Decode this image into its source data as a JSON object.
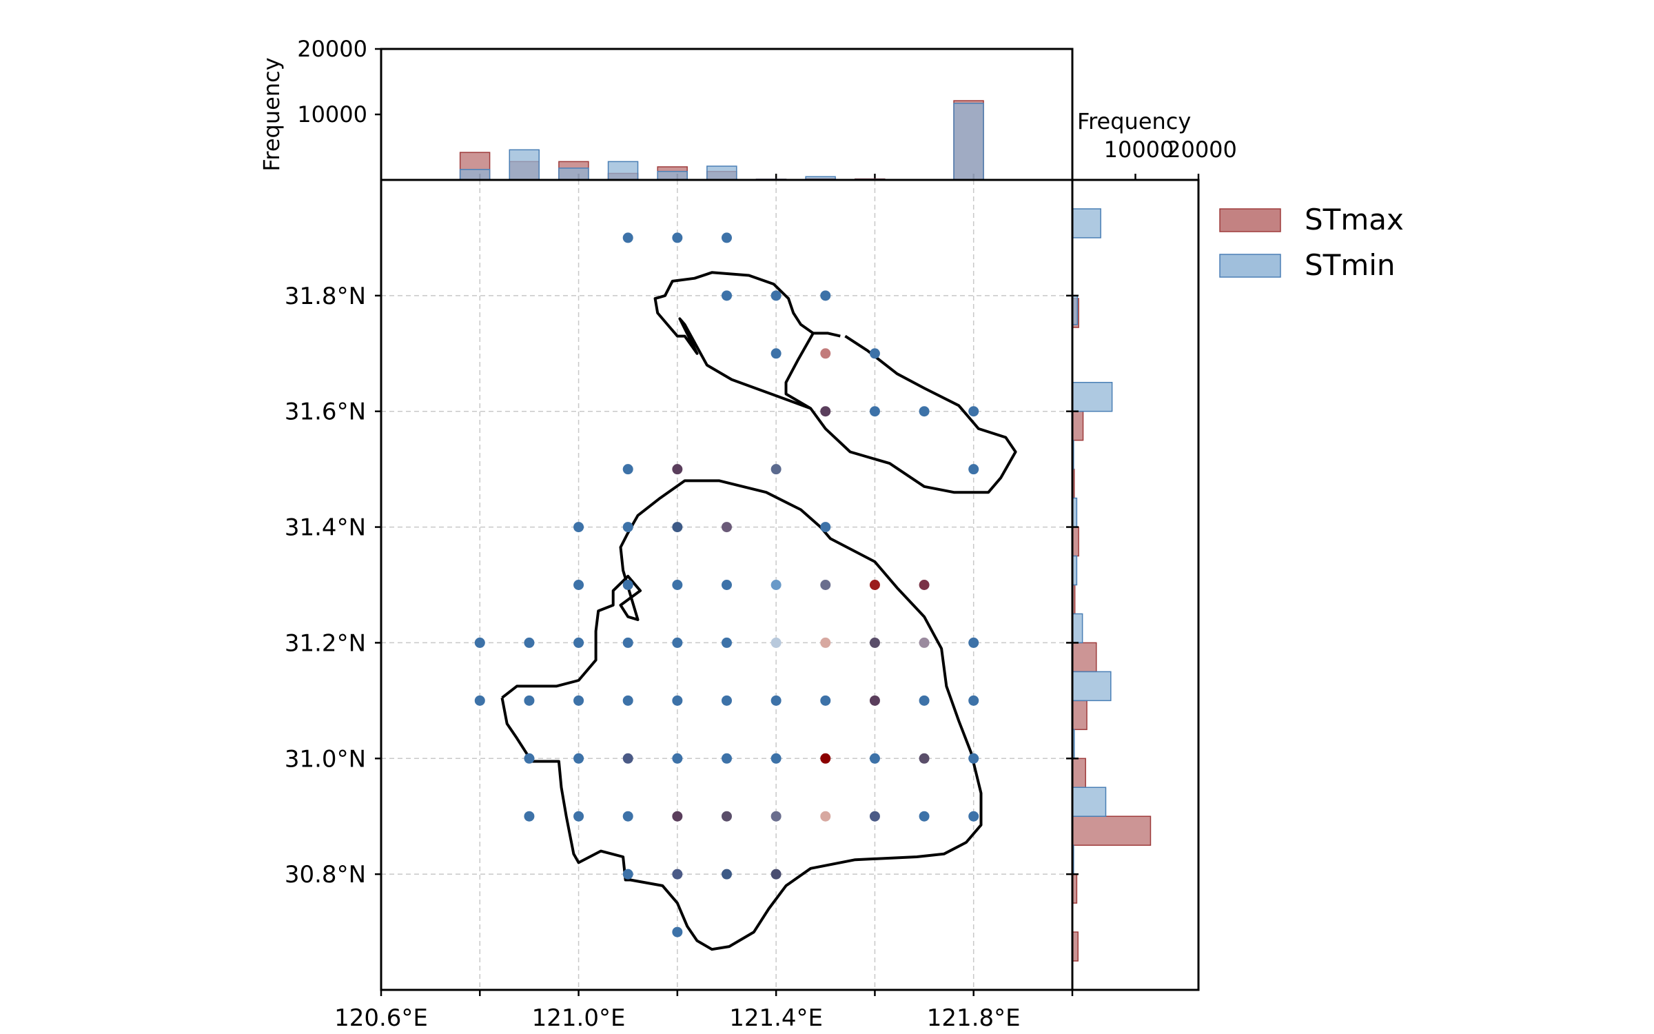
{
  "chart_data": {
    "type": "scatter",
    "xlim": [
      120.6,
      122.0
    ],
    "ylim": [
      30.6,
      32.0
    ],
    "grid": true,
    "x_ticks": [
      120.6,
      120.8,
      121.0,
      121.2,
      121.4,
      121.6,
      121.8,
      122.0
    ],
    "x_tick_labels": [
      "120.6°E",
      "",
      "121.0°E",
      "",
      "121.4°E",
      "",
      "121.8°E",
      ""
    ],
    "y_ticks": [
      30.8,
      31.0,
      31.2,
      31.4,
      31.6,
      31.8
    ],
    "y_tick_labels": [
      "30.8°N",
      "31.0°N",
      "31.2°N",
      "31.4°N",
      "31.6°N",
      "31.8°N"
    ],
    "colors": {
      "stmax": "#9e3b3b",
      "stmin": "#4a7fb5",
      "station_default": "#3d72a8"
    },
    "stations": [
      {
        "lon": 121.1,
        "lat": 31.9,
        "color": "#3d72a8",
        "alpha": 1
      },
      {
        "lon": 121.2,
        "lat": 31.9,
        "color": "#3d72a8",
        "alpha": 1
      },
      {
        "lon": 121.3,
        "lat": 31.9,
        "color": "#3d72a8",
        "alpha": 1
      },
      {
        "lon": 121.3,
        "lat": 31.8,
        "color": "#3d72a8",
        "alpha": 1
      },
      {
        "lon": 121.4,
        "lat": 31.8,
        "color": "#3d72a8",
        "alpha": 1
      },
      {
        "lon": 121.5,
        "lat": 31.8,
        "color": "#3d72a8",
        "alpha": 1
      },
      {
        "lon": 121.4,
        "lat": 31.7,
        "color": "#3d72a8",
        "alpha": 1
      },
      {
        "lon": 121.5,
        "lat": 31.7,
        "color": "#b35a5a",
        "alpha": 0.8
      },
      {
        "lon": 121.6,
        "lat": 31.7,
        "color": "#3d72a8",
        "alpha": 1
      },
      {
        "lon": 121.5,
        "lat": 31.6,
        "color": "#5a3e5c",
        "alpha": 1
      },
      {
        "lon": 121.6,
        "lat": 31.6,
        "color": "#3d72a8",
        "alpha": 1
      },
      {
        "lon": 121.7,
        "lat": 31.6,
        "color": "#3d72a8",
        "alpha": 1
      },
      {
        "lon": 121.8,
        "lat": 31.6,
        "color": "#3d72a8",
        "alpha": 1
      },
      {
        "lon": 121.1,
        "lat": 31.5,
        "color": "#3d72a8",
        "alpha": 1
      },
      {
        "lon": 121.2,
        "lat": 31.5,
        "color": "#5a3e5c",
        "alpha": 1
      },
      {
        "lon": 121.4,
        "lat": 31.5,
        "color": "#5b6a8e",
        "alpha": 1
      },
      {
        "lon": 121.8,
        "lat": 31.5,
        "color": "#3d72a8",
        "alpha": 1
      },
      {
        "lon": 121.0,
        "lat": 31.4,
        "color": "#3d72a8",
        "alpha": 1
      },
      {
        "lon": 121.1,
        "lat": 31.4,
        "color": "#3d72a8",
        "alpha": 1
      },
      {
        "lon": 121.2,
        "lat": 31.4,
        "color": "#3d5a86",
        "alpha": 1
      },
      {
        "lon": 121.3,
        "lat": 31.4,
        "color": "#6a5a78",
        "alpha": 1
      },
      {
        "lon": 121.5,
        "lat": 31.4,
        "color": "#3d72a8",
        "alpha": 1
      },
      {
        "lon": 121.0,
        "lat": 31.3,
        "color": "#3d72a8",
        "alpha": 1
      },
      {
        "lon": 121.1,
        "lat": 31.3,
        "color": "#3d72a8",
        "alpha": 1
      },
      {
        "lon": 121.2,
        "lat": 31.3,
        "color": "#3d72a8",
        "alpha": 1
      },
      {
        "lon": 121.3,
        "lat": 31.3,
        "color": "#3d72a8",
        "alpha": 1
      },
      {
        "lon": 121.4,
        "lat": 31.3,
        "color": "#6a9ac8",
        "alpha": 1
      },
      {
        "lon": 121.5,
        "lat": 31.3,
        "color": "#6a6e8e",
        "alpha": 1
      },
      {
        "lon": 121.6,
        "lat": 31.3,
        "color": "#9b1c1c",
        "alpha": 1
      },
      {
        "lon": 121.7,
        "lat": 31.3,
        "color": "#7a3246",
        "alpha": 1
      },
      {
        "lon": 120.8,
        "lat": 31.2,
        "color": "#3d72a8",
        "alpha": 1
      },
      {
        "lon": 120.9,
        "lat": 31.2,
        "color": "#3d72a8",
        "alpha": 1
      },
      {
        "lon": 121.0,
        "lat": 31.2,
        "color": "#3d72a8",
        "alpha": 1
      },
      {
        "lon": 121.1,
        "lat": 31.2,
        "color": "#3d72a8",
        "alpha": 1
      },
      {
        "lon": 121.2,
        "lat": 31.2,
        "color": "#3d72a8",
        "alpha": 1
      },
      {
        "lon": 121.3,
        "lat": 31.2,
        "color": "#3d72a8",
        "alpha": 1
      },
      {
        "lon": 121.4,
        "lat": 31.2,
        "color": "#b8c9dc",
        "alpha": 1
      },
      {
        "lon": 121.5,
        "lat": 31.2,
        "color": "#d7a8a0",
        "alpha": 1
      },
      {
        "lon": 121.6,
        "lat": 31.2,
        "color": "#5a4e6a",
        "alpha": 1
      },
      {
        "lon": 121.7,
        "lat": 31.2,
        "color": "#9a8a9e",
        "alpha": 1
      },
      {
        "lon": 121.8,
        "lat": 31.2,
        "color": "#3d72a8",
        "alpha": 1
      },
      {
        "lon": 120.8,
        "lat": 31.1,
        "color": "#3d72a8",
        "alpha": 1
      },
      {
        "lon": 120.9,
        "lat": 31.1,
        "color": "#3d72a8",
        "alpha": 1
      },
      {
        "lon": 121.0,
        "lat": 31.1,
        "color": "#3d72a8",
        "alpha": 1
      },
      {
        "lon": 121.1,
        "lat": 31.1,
        "color": "#3d72a8",
        "alpha": 1
      },
      {
        "lon": 121.2,
        "lat": 31.1,
        "color": "#3d72a8",
        "alpha": 1
      },
      {
        "lon": 121.3,
        "lat": 31.1,
        "color": "#3d72a8",
        "alpha": 1
      },
      {
        "lon": 121.4,
        "lat": 31.1,
        "color": "#3d72a8",
        "alpha": 1
      },
      {
        "lon": 121.5,
        "lat": 31.1,
        "color": "#3d72a8",
        "alpha": 1
      },
      {
        "lon": 121.6,
        "lat": 31.1,
        "color": "#5a3e5c",
        "alpha": 1
      },
      {
        "lon": 121.7,
        "lat": 31.1,
        "color": "#3d72a8",
        "alpha": 1
      },
      {
        "lon": 121.8,
        "lat": 31.1,
        "color": "#3d72a8",
        "alpha": 1
      },
      {
        "lon": 120.9,
        "lat": 31.0,
        "color": "#3d72a8",
        "alpha": 1
      },
      {
        "lon": 121.0,
        "lat": 31.0,
        "color": "#3d72a8",
        "alpha": 1
      },
      {
        "lon": 121.1,
        "lat": 31.0,
        "color": "#4a5a86",
        "alpha": 1
      },
      {
        "lon": 121.2,
        "lat": 31.0,
        "color": "#3d72a8",
        "alpha": 1
      },
      {
        "lon": 121.3,
        "lat": 31.0,
        "color": "#3d72a8",
        "alpha": 1
      },
      {
        "lon": 121.4,
        "lat": 31.0,
        "color": "#3d72a8",
        "alpha": 1
      },
      {
        "lon": 121.5,
        "lat": 31.0,
        "color": "#8b0000",
        "alpha": 1
      },
      {
        "lon": 121.6,
        "lat": 31.0,
        "color": "#3d72a8",
        "alpha": 1
      },
      {
        "lon": 121.7,
        "lat": 31.0,
        "color": "#5a4e6a",
        "alpha": 1
      },
      {
        "lon": 121.8,
        "lat": 31.0,
        "color": "#3d72a8",
        "alpha": 1
      },
      {
        "lon": 120.9,
        "lat": 30.9,
        "color": "#3d72a8",
        "alpha": 1
      },
      {
        "lon": 121.0,
        "lat": 30.9,
        "color": "#3d72a8",
        "alpha": 1
      },
      {
        "lon": 121.1,
        "lat": 30.9,
        "color": "#3d72a8",
        "alpha": 1
      },
      {
        "lon": 121.2,
        "lat": 30.9,
        "color": "#5a3e5c",
        "alpha": 1
      },
      {
        "lon": 121.3,
        "lat": 30.9,
        "color": "#5a4e6a",
        "alpha": 1
      },
      {
        "lon": 121.4,
        "lat": 30.9,
        "color": "#6a6e8e",
        "alpha": 1
      },
      {
        "lon": 121.5,
        "lat": 30.9,
        "color": "#d7a8a0",
        "alpha": 1
      },
      {
        "lon": 121.6,
        "lat": 30.9,
        "color": "#4a5a86",
        "alpha": 1
      },
      {
        "lon": 121.7,
        "lat": 30.9,
        "color": "#3d72a8",
        "alpha": 1
      },
      {
        "lon": 121.8,
        "lat": 30.9,
        "color": "#3d72a8",
        "alpha": 1
      },
      {
        "lon": 121.1,
        "lat": 30.8,
        "color": "#3d72a8",
        "alpha": 1
      },
      {
        "lon": 121.2,
        "lat": 30.8,
        "color": "#4a5a86",
        "alpha": 1
      },
      {
        "lon": 121.3,
        "lat": 30.8,
        "color": "#3d5a86",
        "alpha": 1
      },
      {
        "lon": 121.4,
        "lat": 30.8,
        "color": "#4a4e70",
        "alpha": 1
      },
      {
        "lon": 121.2,
        "lat": 30.7,
        "color": "#3d72a8",
        "alpha": 1
      }
    ],
    "boundary_lower": [
      [
        120.845,
        31.105
      ],
      [
        120.875,
        31.125
      ],
      [
        120.955,
        31.125
      ],
      [
        121.0,
        31.135
      ],
      [
        121.035,
        31.17
      ],
      [
        121.035,
        31.22
      ],
      [
        121.04,
        31.255
      ],
      [
        121.07,
        31.265
      ],
      [
        121.07,
        31.29
      ],
      [
        121.1,
        31.315
      ],
      [
        121.125,
        31.29
      ],
      [
        121.085,
        31.265
      ],
      [
        121.1,
        31.245
      ],
      [
        121.12,
        31.24
      ],
      [
        121.09,
        31.325
      ],
      [
        121.085,
        31.365
      ],
      [
        121.1,
        31.39
      ],
      [
        121.12,
        31.42
      ],
      [
        121.165,
        31.45
      ],
      [
        121.215,
        31.48
      ],
      [
        121.285,
        31.48
      ],
      [
        121.38,
        31.46
      ],
      [
        121.45,
        31.43
      ],
      [
        121.49,
        31.4
      ],
      [
        121.51,
        31.38
      ],
      [
        121.6,
        31.34
      ],
      [
        121.645,
        31.295
      ],
      [
        121.7,
        31.245
      ],
      [
        121.735,
        31.19
      ],
      [
        121.745,
        31.125
      ],
      [
        121.77,
        31.065
      ],
      [
        121.795,
        31.01
      ],
      [
        121.815,
        30.94
      ],
      [
        121.815,
        30.885
      ],
      [
        121.785,
        30.855
      ],
      [
        121.74,
        30.835
      ],
      [
        121.685,
        30.83
      ],
      [
        121.56,
        30.825
      ],
      [
        121.47,
        30.81
      ],
      [
        121.42,
        30.78
      ],
      [
        121.385,
        30.74
      ],
      [
        121.355,
        30.7
      ],
      [
        121.305,
        30.675
      ],
      [
        121.27,
        30.67
      ],
      [
        121.24,
        30.685
      ],
      [
        121.22,
        30.71
      ],
      [
        121.2,
        30.75
      ],
      [
        121.17,
        30.78
      ],
      [
        121.105,
        30.79
      ],
      [
        121.095,
        30.79
      ],
      [
        121.09,
        30.83
      ],
      [
        121.045,
        30.84
      ],
      [
        121.0,
        30.82
      ],
      [
        120.99,
        30.835
      ],
      [
        120.975,
        30.9
      ],
      [
        120.965,
        30.95
      ],
      [
        120.96,
        30.995
      ],
      [
        120.905,
        30.995
      ],
      [
        120.875,
        31.035
      ],
      [
        120.855,
        31.06
      ],
      [
        120.845,
        31.105
      ]
    ],
    "boundary_upper": [
      [
        121.53,
        31.73
      ],
      [
        121.505,
        31.735
      ],
      [
        121.475,
        31.735
      ],
      [
        121.445,
        31.69
      ],
      [
        121.42,
        31.65
      ],
      [
        121.42,
        31.63
      ],
      [
        121.47,
        31.605
      ],
      [
        121.5,
        31.57
      ],
      [
        121.55,
        31.53
      ],
      [
        121.63,
        31.51
      ],
      [
        121.7,
        31.47
      ],
      [
        121.76,
        31.46
      ],
      [
        121.83,
        31.46
      ],
      [
        121.855,
        31.485
      ],
      [
        121.885,
        31.53
      ],
      [
        121.865,
        31.555
      ],
      [
        121.81,
        31.57
      ],
      [
        121.77,
        31.61
      ],
      [
        121.7,
        31.64
      ],
      [
        121.645,
        31.665
      ],
      [
        121.585,
        31.705
      ],
      [
        121.54,
        31.73
      ]
    ],
    "boundary_upper_hook": [
      [
        121.47,
        31.605
      ],
      [
        121.39,
        31.63
      ],
      [
        121.31,
        31.655
      ],
      [
        121.26,
        31.68
      ],
      [
        121.215,
        31.75
      ],
      [
        121.205,
        31.76
      ],
      [
        121.24,
        31.7
      ],
      [
        121.215,
        31.73
      ],
      [
        121.2,
        31.73
      ],
      [
        121.185,
        31.745
      ],
      [
        121.16,
        31.77
      ],
      [
        121.155,
        31.795
      ],
      [
        121.175,
        31.8
      ],
      [
        121.19,
        31.825
      ],
      [
        121.235,
        31.83
      ],
      [
        121.27,
        31.84
      ],
      [
        121.345,
        31.835
      ],
      [
        121.395,
        31.82
      ],
      [
        121.425,
        31.795
      ],
      [
        121.435,
        31.77
      ],
      [
        121.45,
        31.75
      ],
      [
        121.475,
        31.735
      ]
    ],
    "top_histogram": {
      "ylabel": "Frequency",
      "ylim": [
        0,
        20000
      ],
      "y_ticks": [
        10000,
        20000
      ],
      "y_tick_labels": [
        "10000",
        "20000"
      ],
      "bin_width_deg": 0.06,
      "stmax": [
        {
          "center": 120.79,
          "count": 4200
        },
        {
          "center": 120.89,
          "count": 2800
        },
        {
          "center": 120.99,
          "count": 2800
        },
        {
          "center": 121.09,
          "count": 1000
        },
        {
          "center": 121.19,
          "count": 2000
        },
        {
          "center": 121.29,
          "count": 1300
        },
        {
          "center": 121.39,
          "count": 100
        },
        {
          "center": 121.49,
          "count": 200
        },
        {
          "center": 121.59,
          "count": 150
        },
        {
          "center": 121.79,
          "count": 12100
        }
      ],
      "stmin": [
        {
          "center": 120.79,
          "count": 1600
        },
        {
          "center": 120.89,
          "count": 4600
        },
        {
          "center": 120.99,
          "count": 1800
        },
        {
          "center": 121.09,
          "count": 2800
        },
        {
          "center": 121.19,
          "count": 1300
        },
        {
          "center": 121.29,
          "count": 2100
        },
        {
          "center": 121.39,
          "count": 100
        },
        {
          "center": 121.49,
          "count": 500
        },
        {
          "center": 121.59,
          "count": 100
        },
        {
          "center": 121.79,
          "count": 11700
        }
      ]
    },
    "right_histogram": {
      "xlabel": "Frequency",
      "xlim": [
        0,
        20000
      ],
      "x_ticks": [
        10000,
        20000
      ],
      "x_tick_labels": [
        "10000",
        "20000"
      ],
      "bin_height_deg": 0.05,
      "stmax": [
        {
          "center": 31.77,
          "count": 1000
        },
        {
          "center": 31.575,
          "count": 1700
        },
        {
          "center": 31.475,
          "count": 300
        },
        {
          "center": 31.375,
          "count": 1000
        },
        {
          "center": 31.275,
          "count": 400
        },
        {
          "center": 31.175,
          "count": 3800
        },
        {
          "center": 31.075,
          "count": 2300
        },
        {
          "center": 30.975,
          "count": 2100
        },
        {
          "center": 30.875,
          "count": 12400
        },
        {
          "center": 30.775,
          "count": 700
        },
        {
          "center": 30.675,
          "count": 900
        }
      ],
      "stmin": [
        {
          "center": 31.925,
          "count": 4500
        },
        {
          "center": 31.775,
          "count": 800
        },
        {
          "center": 31.625,
          "count": 6300
        },
        {
          "center": 31.525,
          "count": 200
        },
        {
          "center": 31.425,
          "count": 700
        },
        {
          "center": 31.325,
          "count": 700
        },
        {
          "center": 31.225,
          "count": 1600
        },
        {
          "center": 31.125,
          "count": 6100
        },
        {
          "center": 31.025,
          "count": 300
        },
        {
          "center": 30.925,
          "count": 5300
        },
        {
          "center": 30.825,
          "count": 200
        }
      ]
    },
    "legend": {
      "placement": "right",
      "entries": [
        {
          "label": "STmax",
          "color": "#b96c6c",
          "edge": "#9e3b3b"
        },
        {
          "label": "STmin",
          "color": "#8fb4d6",
          "edge": "#4a7fb5"
        }
      ]
    }
  }
}
